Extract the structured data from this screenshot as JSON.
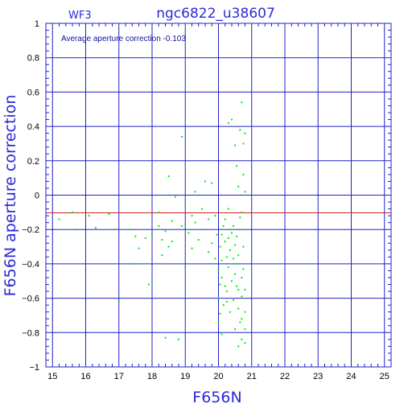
{
  "colors": {
    "frame": "#2020c8",
    "grid": "#2020c8",
    "points": "#00ee00",
    "refline": "#cc2020",
    "labels": "#3a3ad8"
  },
  "chart_data": {
    "type": "scatter",
    "title": "ngc6822_u38607",
    "corner_label": "WF3",
    "annotation": "Average aperture correction  -0.103",
    "xlabel": "F656N",
    "ylabel": "F656N aperture correction",
    "xlim": [
      14.8,
      25.2
    ],
    "ylim": [
      -1,
      1
    ],
    "xticks": [
      15,
      16,
      17,
      18,
      19,
      20,
      21,
      22,
      23,
      24,
      25
    ],
    "yticks": [
      -1,
      -0.8,
      -0.6,
      -0.4,
      -0.2,
      0,
      0.2,
      0.4,
      0.6,
      0.8,
      1
    ],
    "xtick_labels": [
      "15",
      "16",
      "17",
      "18",
      "19",
      "20",
      "21",
      "22",
      "23",
      "24",
      "25"
    ],
    "ytick_labels": [
      "−1",
      "−0.8",
      "−0.6",
      "−0.4",
      "−0.2",
      "0",
      "0.2",
      "0.4",
      "0.6",
      "0.8",
      "1"
    ],
    "reference_line": -0.103,
    "grid": true,
    "points": [
      [
        15.2,
        -0.14
      ],
      [
        15.6,
        -0.1
      ],
      [
        15.7,
        -0.2
      ],
      [
        16.1,
        -0.12
      ],
      [
        16.3,
        -0.19
      ],
      [
        16.7,
        -0.11
      ],
      [
        16.9,
        -0.2
      ],
      [
        17.0,
        -0.62
      ],
      [
        17.3,
        -0.2
      ],
      [
        17.4,
        -0.4
      ],
      [
        17.5,
        -0.24
      ],
      [
        17.6,
        -0.31
      ],
      [
        17.8,
        -0.25
      ],
      [
        17.9,
        -0.52
      ],
      [
        18.0,
        -0.23
      ],
      [
        18.2,
        -0.1
      ],
      [
        18.2,
        -0.18
      ],
      [
        18.3,
        -0.35
      ],
      [
        18.3,
        -0.26
      ],
      [
        18.4,
        -0.21
      ],
      [
        18.4,
        -0.83
      ],
      [
        18.5,
        0.11
      ],
      [
        18.5,
        -0.3
      ],
      [
        18.6,
        -0.15
      ],
      [
        18.6,
        -0.27
      ],
      [
        18.7,
        -0.01
      ],
      [
        18.8,
        -0.84
      ],
      [
        18.9,
        0.34
      ],
      [
        18.9,
        -0.18
      ],
      [
        19.0,
        -0.42
      ],
      [
        19.0,
        -0.06
      ],
      [
        19.1,
        -0.22
      ],
      [
        19.2,
        -0.12
      ],
      [
        19.2,
        -0.31
      ],
      [
        19.3,
        0.02
      ],
      [
        19.3,
        -0.16
      ],
      [
        19.4,
        -0.26
      ],
      [
        19.5,
        -0.08
      ],
      [
        19.5,
        -0.2
      ],
      [
        19.6,
        0.08
      ],
      [
        19.7,
        -0.33
      ],
      [
        19.7,
        -0.14
      ],
      [
        19.8,
        0.07
      ],
      [
        19.8,
        -0.28
      ],
      [
        19.9,
        -0.37
      ],
      [
        19.9,
        -0.12
      ],
      [
        19.95,
        -0.23
      ],
      [
        20.0,
        -0.44
      ],
      [
        20.0,
        -0.74
      ],
      [
        20.0,
        -0.6
      ],
      [
        20.05,
        -0.69
      ],
      [
        20.05,
        -0.3
      ],
      [
        20.1,
        -0.48
      ],
      [
        20.1,
        -0.23
      ],
      [
        20.1,
        -0.38
      ],
      [
        20.1,
        -0.81
      ],
      [
        20.15,
        -0.64
      ],
      [
        20.2,
        -0.53
      ],
      [
        20.2,
        -0.27
      ],
      [
        20.2,
        -0.14
      ],
      [
        20.25,
        -0.56
      ],
      [
        20.25,
        -0.36
      ],
      [
        20.3,
        -0.42
      ],
      [
        20.3,
        -0.25
      ],
      [
        20.3,
        0.42
      ],
      [
        20.3,
        -0.08
      ],
      [
        20.35,
        -0.68
      ],
      [
        20.35,
        -0.32
      ],
      [
        20.4,
        -0.22
      ],
      [
        20.4,
        -0.5
      ],
      [
        20.4,
        0.44
      ],
      [
        20.45,
        -0.18
      ],
      [
        20.45,
        -0.61
      ],
      [
        20.5,
        0.29
      ],
      [
        20.5,
        -0.29
      ],
      [
        20.5,
        -0.46
      ],
      [
        20.5,
        -0.78
      ],
      [
        20.55,
        0.17
      ],
      [
        20.55,
        -0.24
      ],
      [
        20.55,
        -0.4
      ],
      [
        20.6,
        0.05
      ],
      [
        20.6,
        -0.35
      ],
      [
        20.6,
        -0.55
      ],
      [
        20.6,
        -0.66
      ],
      [
        20.65,
        0.38
      ],
      [
        20.65,
        -0.2
      ],
      [
        20.65,
        -0.13
      ],
      [
        20.7,
        -0.48
      ],
      [
        20.7,
        -0.59
      ],
      [
        20.7,
        -0.72
      ],
      [
        20.7,
        -0.84
      ],
      [
        20.7,
        0.54
      ],
      [
        20.75,
        0.3
      ],
      [
        20.75,
        -0.3
      ],
      [
        20.75,
        -0.43
      ],
      [
        20.8,
        -0.55
      ],
      [
        20.8,
        -0.68
      ],
      [
        20.8,
        -0.78
      ],
      [
        20.8,
        -0.86
      ],
      [
        20.8,
        0.36
      ],
      [
        20.8,
        0.02
      ],
      [
        20.35,
        -0.2
      ],
      [
        20.45,
        -0.37
      ],
      [
        20.55,
        -0.53
      ],
      [
        20.65,
        -0.74
      ],
      [
        20.25,
        -0.62
      ],
      [
        20.15,
        -0.18
      ],
      [
        20.05,
        -0.52
      ],
      [
        20.6,
        -0.88
      ],
      [
        20.7,
        -0.1
      ],
      [
        20.75,
        0.12
      ]
    ]
  }
}
